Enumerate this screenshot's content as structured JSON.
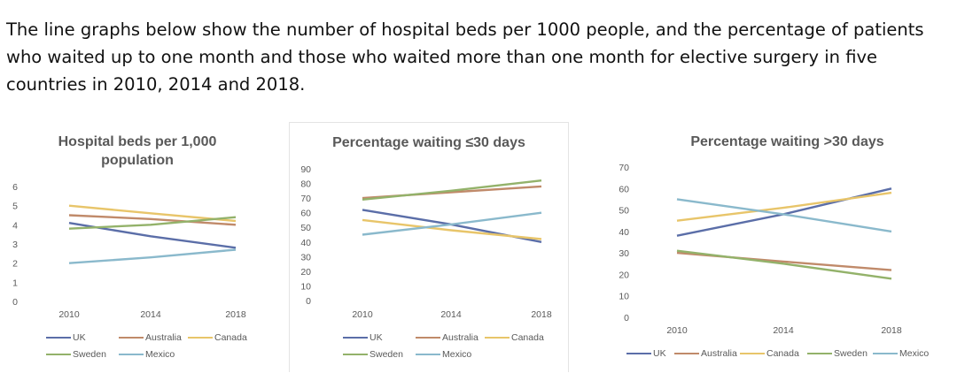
{
  "intro_text": "The line graphs below show the number of hospital beds per 1000 people, and the percentage of patients who waited up to one month and those who waited more than one month for elective surgery in five countries in 2010, 2014 and 2018.",
  "colors": {
    "UK": "#5b6ea8",
    "Australia": "#c08a6a",
    "Canada": "#e8c56a",
    "Sweden": "#93b26a",
    "Mexico": "#8ab9cc"
  },
  "chart_data": [
    {
      "type": "line",
      "title": "Hospital beds per 1,000 population",
      "title_lines": [
        "Hospital beds per 1,000",
        "population"
      ],
      "categories": [
        "2010",
        "2014",
        "2018"
      ],
      "ylim": [
        0,
        6
      ],
      "yticks": [
        "0",
        "1",
        "2",
        "3",
        "4",
        "5",
        "6"
      ],
      "series": [
        {
          "name": "UK",
          "values": [
            4.1,
            3.4,
            2.8
          ]
        },
        {
          "name": "Australia",
          "values": [
            4.5,
            4.3,
            4.0
          ]
        },
        {
          "name": "Canada",
          "values": [
            5.0,
            4.6,
            4.2
          ]
        },
        {
          "name": "Sweden",
          "values": [
            3.8,
            4.0,
            4.4
          ]
        },
        {
          "name": "Mexico",
          "values": [
            2.0,
            2.3,
            2.7
          ]
        }
      ]
    },
    {
      "type": "line",
      "title": "Percentage waiting ≤30 days",
      "title_lines": [
        "Percentage waiting ≤30 days"
      ],
      "categories": [
        "2010",
        "2014",
        "2018"
      ],
      "ylim": [
        0,
        90
      ],
      "yticks": [
        "0",
        "10",
        "20",
        "30",
        "40",
        "50",
        "60",
        "70",
        "80",
        "90"
      ],
      "series": [
        {
          "name": "UK",
          "values": [
            62,
            52,
            40
          ]
        },
        {
          "name": "Australia",
          "values": [
            70,
            74,
            78
          ]
        },
        {
          "name": "Canada",
          "values": [
            55,
            48,
            42
          ]
        },
        {
          "name": "Sweden",
          "values": [
            69,
            75,
            82
          ]
        },
        {
          "name": "Mexico",
          "values": [
            45,
            52,
            60
          ]
        }
      ]
    },
    {
      "type": "line",
      "title": "Percentage waiting >30 days",
      "title_lines": [
        "Percentage waiting >30 days"
      ],
      "categories": [
        "2010",
        "2014",
        "2018"
      ],
      "ylim": [
        0,
        70
      ],
      "yticks": [
        "0",
        "10",
        "20",
        "30",
        "40",
        "50",
        "60",
        "70"
      ],
      "series": [
        {
          "name": "UK",
          "values": [
            38,
            48,
            60
          ]
        },
        {
          "name": "Australia",
          "values": [
            30,
            26,
            22
          ]
        },
        {
          "name": "Canada",
          "values": [
            45,
            51,
            58
          ]
        },
        {
          "name": "Sweden",
          "values": [
            31,
            25,
            18
          ]
        },
        {
          "name": "Mexico",
          "values": [
            55,
            48,
            40
          ]
        }
      ]
    }
  ]
}
